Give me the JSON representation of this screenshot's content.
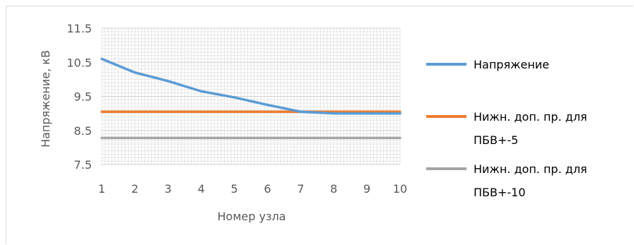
{
  "chart_data": {
    "type": "line",
    "title": "",
    "xlabel": "Номер узла",
    "ylabel": "Напряжение, кВ",
    "x": [
      1,
      2,
      3,
      4,
      5,
      6,
      7,
      8,
      9,
      10
    ],
    "x_tick_labels": [
      "1",
      "2",
      "3",
      "4",
      "5",
      "6",
      "7",
      "8",
      "9",
      "10"
    ],
    "y_tick_labels": [
      "7.5",
      "8.5",
      "9.5",
      "10.5",
      "11.5"
    ],
    "ylim": [
      7.5,
      11.5
    ],
    "grid": true,
    "legend_position": "right",
    "series": [
      {
        "name": "Напряжение",
        "color": "#5b9bd5",
        "values": [
          10.6,
          10.2,
          9.95,
          9.65,
          9.47,
          9.25,
          9.05,
          9.0,
          9.0,
          9.0
        ]
      },
      {
        "name": "Нижн. доп. пр. для ПБВ+-5",
        "name_lines": [
          "Нижн. доп. пр. для",
          "ПБВ+-5"
        ],
        "color": "#ed7d31",
        "values": [
          9.05,
          9.05,
          9.05,
          9.05,
          9.05,
          9.05,
          9.05,
          9.05,
          9.05,
          9.05
        ]
      },
      {
        "name": "Нижн. доп. пр. для ПБВ+-10",
        "name_lines": [
          "Нижн. доп. пр. для",
          "ПБВ+-10"
        ],
        "color": "#a5a5a5",
        "values": [
          8.28,
          8.28,
          8.28,
          8.28,
          8.28,
          8.28,
          8.28,
          8.28,
          8.28,
          8.28
        ]
      }
    ]
  }
}
